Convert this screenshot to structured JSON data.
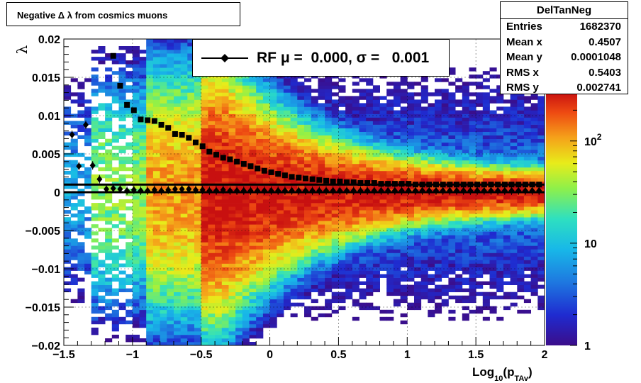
{
  "title": "Negative Δ λ from cosmics muons",
  "stats": {
    "name": "DelTanNeg",
    "rows": [
      {
        "label": "Entries",
        "value": "1682370"
      },
      {
        "label": "Mean x",
        "value": "0.4507"
      },
      {
        "label": "Mean y",
        "value": "0.0001048"
      },
      {
        "label": "RMS x",
        "value": "0.5403"
      },
      {
        "label": "RMS y",
        "value": "0.002741"
      }
    ]
  },
  "legend": {
    "text": "RF μ =  0.000, σ =   0.001"
  },
  "chart_data": {
    "type": "heatmap",
    "title": "Negative Δ λ from cosmics muons",
    "xlabel": "Log10(p_TAv)",
    "ylabel": "λ",
    "xlim": [
      -1.5,
      2
    ],
    "ylim": [
      -0.02,
      0.02
    ],
    "z_scale": "log",
    "z_range": [
      1,
      300
    ],
    "x_ticks": [
      "−1.5",
      "−1",
      "−0.5",
      "0",
      "0.5",
      "1",
      "1.5",
      "2"
    ],
    "y_ticks": [
      "−0.02",
      "−0.015",
      "−0.01",
      "−0.005",
      "0",
      "0.005",
      "0.01",
      "0.015",
      "0.02"
    ],
    "z_ticks": [
      {
        "base": "1",
        "exp": "",
        "value": 1
      },
      {
        "base": "10",
        "exp": "",
        "value": 10
      },
      {
        "base": "10",
        "exp": "2",
        "value": 100
      }
    ],
    "grid": true,
    "colormap": [
      "#3b0d8a",
      "#1f2bd0",
      "#1e78e0",
      "#18b8e8",
      "#2ee0c0",
      "#8ef04a",
      "#e8ec1a",
      "#f5a21a",
      "#ee4a12",
      "#c81010"
    ],
    "series": [
      {
        "name": "RF",
        "marker": "diamond",
        "x": [
          -1.44,
          -1.39,
          -1.34,
          -1.29,
          -1.24,
          -1.19,
          -1.14,
          -1.09,
          -1.04,
          -0.99,
          -0.94,
          -0.89,
          -0.84,
          -0.79,
          -0.74,
          -0.69,
          -0.64,
          -0.59,
          -0.54,
          -0.49,
          -0.44,
          -0.39,
          -0.34,
          -0.29,
          -0.24,
          -0.19,
          -0.14,
          -0.09,
          -0.04,
          0.01,
          0.06,
          0.11,
          0.16,
          0.21,
          0.26,
          0.31,
          0.36,
          0.41,
          0.46,
          0.51,
          0.56,
          0.61,
          0.66,
          0.71,
          0.76,
          0.81,
          0.86,
          0.91,
          0.96,
          1.01,
          1.06,
          1.11,
          1.16,
          1.21,
          1.26,
          1.31,
          1.36,
          1.41,
          1.46,
          1.51,
          1.56,
          1.61,
          1.66,
          1.71,
          1.76,
          1.81,
          1.86,
          1.91,
          1.96
        ],
        "y": [
          0.0075,
          0.0034,
          0.0088,
          0.0035,
          0.0017,
          0.0004,
          0.0005,
          0.0004,
          0.0002,
          0.0003,
          0.0002,
          0.0002,
          0.0003,
          0.0002,
          0.0003,
          0.0004,
          0.0004,
          0.0004,
          0.0003,
          0.0003,
          0.0002,
          0.0002,
          0.0003,
          0.0002,
          0.0002,
          0.0002,
          0.0002,
          0.0002,
          0.0002,
          0.0002,
          0.0002,
          0.0002,
          0.0002,
          0.0002,
          0.0002,
          0.0002,
          0.0002,
          0.0002,
          0.0002,
          0.0002,
          0.0002,
          0.0002,
          0.0002,
          0.0002,
          0.0002,
          0.0002,
          0.0002,
          0.0002,
          0.0002,
          0.0002,
          0.0002,
          0.0002,
          0.0002,
          0.0002,
          0.0002,
          0.0002,
          0.0002,
          0.0002,
          0.0002,
          0.0002,
          0.0002,
          0.0002,
          0.0002,
          0.0002,
          0.0002,
          0.0002,
          0.0002,
          0.0002,
          0.0002
        ]
      },
      {
        "name": "",
        "marker": "square",
        "x": [
          -1.14,
          -1.09,
          -1.04,
          -0.99,
          -0.94,
          -0.89,
          -0.84,
          -0.79,
          -0.74,
          -0.69,
          -0.64,
          -0.59,
          -0.54,
          -0.49,
          -0.44,
          -0.39,
          -0.34,
          -0.29,
          -0.24,
          -0.19,
          -0.14,
          -0.09,
          -0.04,
          0.01,
          0.06,
          0.11,
          0.16,
          0.21,
          0.26,
          0.31,
          0.36,
          0.41,
          0.46,
          0.51,
          0.56,
          0.61,
          0.66,
          0.71,
          0.76,
          0.81,
          0.86,
          0.91,
          0.96,
          1.01,
          1.06,
          1.11,
          1.16,
          1.21,
          1.26,
          1.31,
          1.36,
          1.41,
          1.46,
          1.51,
          1.56,
          1.61,
          1.66,
          1.71,
          1.76,
          1.81,
          1.86,
          1.91,
          1.96
        ],
        "y": [
          0.0178,
          0.0139,
          0.0114,
          0.0107,
          0.0095,
          0.0094,
          0.0093,
          0.0088,
          0.0084,
          0.0076,
          0.0075,
          0.0071,
          0.0065,
          0.006,
          0.0053,
          0.0049,
          0.0045,
          0.0043,
          0.004,
          0.0037,
          0.0034,
          0.0031,
          0.0028,
          0.0026,
          0.0024,
          0.0022,
          0.002,
          0.0019,
          0.0018,
          0.0017,
          0.0016,
          0.0015,
          0.0014,
          0.0014,
          0.0013,
          0.0013,
          0.0012,
          0.0012,
          0.0012,
          0.0011,
          0.0011,
          0.0011,
          0.0011,
          0.0011,
          0.001,
          0.001,
          0.001,
          0.001,
          0.001,
          0.001,
          0.001,
          0.001,
          0.001,
          0.001,
          0.001,
          0.001,
          0.001,
          0.001,
          0.001,
          0.001,
          0.001,
          0.001,
          0.001
        ]
      }
    ],
    "fit_lines": [
      {
        "name": "RF mean",
        "y": 0.0
      },
      {
        "name": "RF sigma",
        "y": 0.001
      }
    ]
  }
}
